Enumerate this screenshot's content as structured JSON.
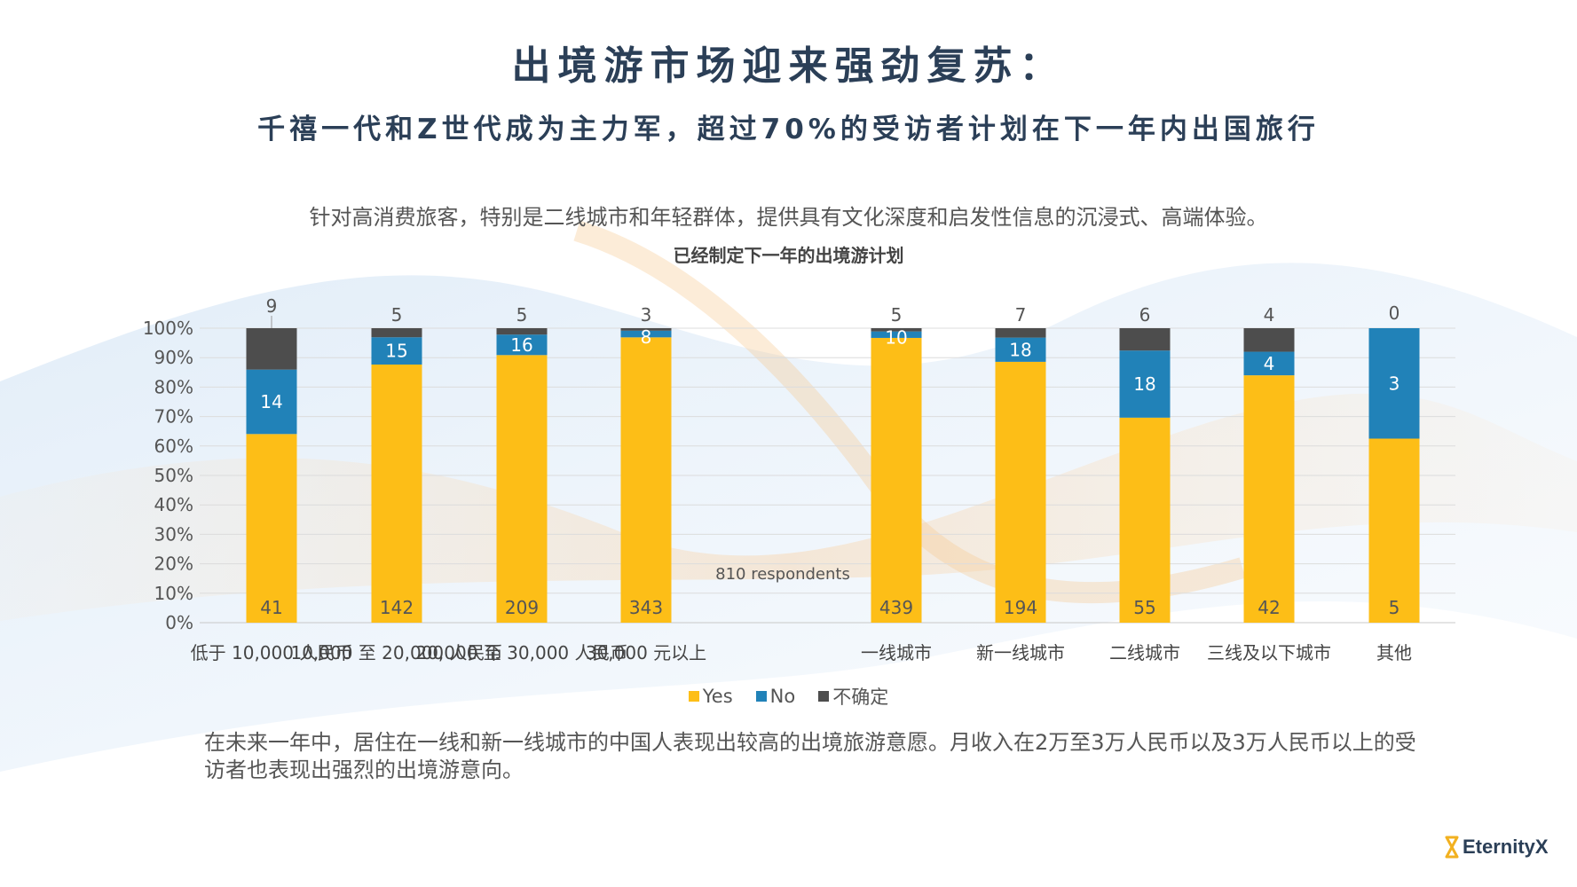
{
  "header": {
    "title": "出境游市场迎来强劲复苏：",
    "subtitle": "千禧一代和Z世代成为主力军，超过70%的受访者计划在下一年内出国旅行",
    "intro": "针对高消费旅客，特别是二线城市和年轻群体，提供具有文化深度和启发性信息的沉浸式、高端体验。"
  },
  "footer": {
    "note": "在未来一年中，居住在一线和新一线城市的中国人表现出较高的出境旅游意愿。月收入在2万至3万人民币以及3万人民币以上的受访者也表现出强烈的出境游意向。",
    "logo_text": "EternityX"
  },
  "colors": {
    "yes": "#FDBE17",
    "no": "#2182B8",
    "unsure": "#4D4D4D",
    "title": "#2B3F57",
    "logo_accent": "#F2B120"
  },
  "chart_data": {
    "type": "bar",
    "stacked": "percent",
    "title": "已经制定下一年的出境游计划",
    "annotation": "810 respondents",
    "ylim": [
      0,
      100
    ],
    "yticks": [
      "0%",
      "10%",
      "20%",
      "30%",
      "40%",
      "50%",
      "60%",
      "70%",
      "80%",
      "90%",
      "100%"
    ],
    "grid": true,
    "legend_position": "bottom",
    "groups": [
      {
        "categories": [
          "低于 10,000 人民币",
          "10,000 至 20,000 人民币",
          "20,000 至 30,000 人民币",
          "30,000 元以上"
        ]
      },
      {
        "categories": [
          "一线城市",
          "新一线城市",
          "二线城市",
          "三线及以下城市",
          "其他"
        ]
      }
    ],
    "categories": [
      "低于 10,000 人民币",
      "10,000 至 20,000 人民币",
      "20,000 至 30,000 人民币",
      "30,000 元以上",
      "一线城市",
      "新一线城市",
      "二线城市",
      "三线及以下城市",
      "其他"
    ],
    "series": [
      {
        "name": "Yes",
        "values": [
          41,
          142,
          209,
          343,
          439,
          194,
          55,
          42,
          5
        ]
      },
      {
        "name": "No",
        "values": [
          14,
          15,
          16,
          8,
          10,
          18,
          18,
          4,
          3
        ]
      },
      {
        "name": "不确定",
        "values": [
          9,
          5,
          5,
          3,
          5,
          7,
          6,
          4,
          0
        ]
      }
    ]
  }
}
